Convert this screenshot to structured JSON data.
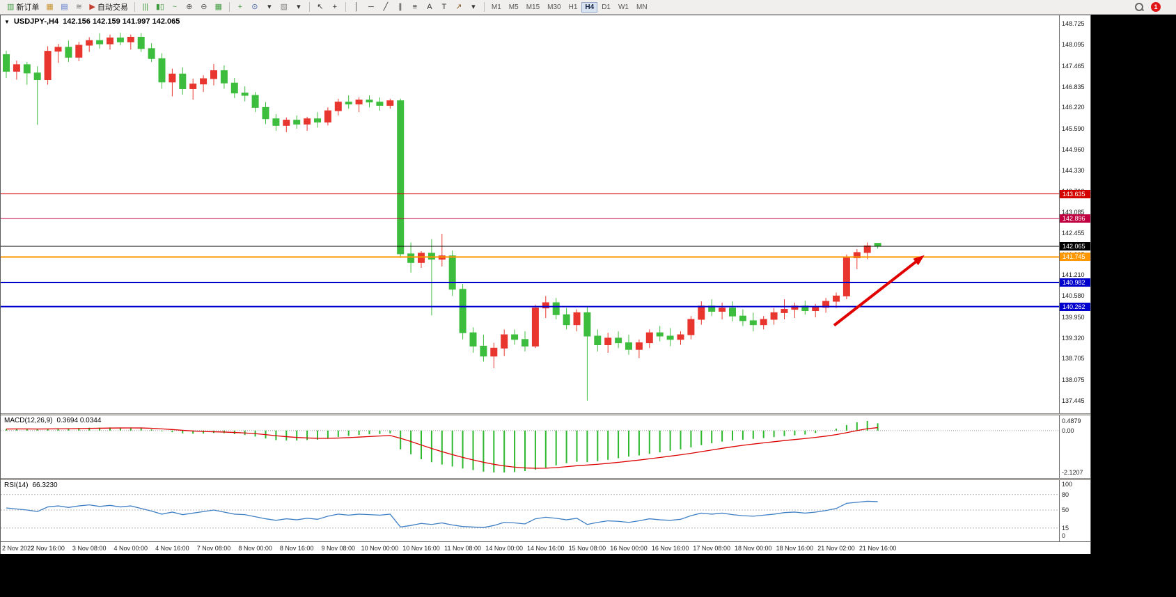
{
  "toolbar": {
    "notification_badge": "1",
    "items": [
      {
        "kind": "button",
        "name": "new-order-button",
        "glyph": "▥",
        "color": "#3f9d3f",
        "label": "新订单"
      },
      {
        "kind": "icon",
        "name": "charts-window-icon",
        "glyph": "▦",
        "color": "#c8922f"
      },
      {
        "kind": "icon",
        "name": "market-watch-icon",
        "glyph": "▤",
        "color": "#5b79c9"
      },
      {
        "kind": "icon",
        "name": "signals-icon",
        "glyph": "≋",
        "color": "#777777"
      },
      {
        "kind": "button",
        "name": "auto-trading-button",
        "glyph": "▶",
        "color": "#c43c2e",
        "label": "自动交易"
      },
      {
        "kind": "sep"
      },
      {
        "kind": "icon",
        "name": "bar-chart-icon",
        "glyph": "|||",
        "color": "#3f9d3f"
      },
      {
        "kind": "icon",
        "name": "candlestick-chart-icon",
        "glyph": "▮▯",
        "color": "#3f9d3f"
      },
      {
        "kind": "icon",
        "name": "line-chart-icon",
        "glyph": "~",
        "color": "#3f9d3f"
      },
      {
        "kind": "icon",
        "name": "zoom-in-icon",
        "glyph": "⊕",
        "color": "#555555"
      },
      {
        "kind": "icon",
        "name": "zoom-out-icon",
        "glyph": "⊖",
        "color": "#555555"
      },
      {
        "kind": "icon",
        "name": "tile-windows-icon",
        "glyph": "▦",
        "color": "#3f9d3f"
      },
      {
        "kind": "sep"
      },
      {
        "kind": "icon",
        "name": "new-chart-icon",
        "glyph": "+",
        "color": "#3f9d3f"
      },
      {
        "kind": "icon",
        "name": "clock-icon",
        "glyph": "⊙",
        "color": "#4466aa"
      },
      {
        "kind": "icon",
        "name": "chart-options-dropdown-icon",
        "glyph": "▾",
        "color": "#333333"
      },
      {
        "kind": "icon",
        "name": "templates-icon",
        "glyph": "▨",
        "color": "#888888"
      },
      {
        "kind": "icon",
        "name": "templates-dropdown-icon",
        "glyph": "▾",
        "color": "#333333"
      },
      {
        "kind": "sep"
      },
      {
        "kind": "icon",
        "name": "cursor-icon",
        "glyph": "↖",
        "color": "#333333"
      },
      {
        "kind": "icon",
        "name": "crosshair-icon",
        "glyph": "+",
        "color": "#333333"
      },
      {
        "kind": "sep"
      },
      {
        "kind": "icon",
        "name": "vertical-line-icon",
        "glyph": "│",
        "color": "#333333"
      },
      {
        "kind": "icon",
        "name": "horizontal-line-icon",
        "glyph": "─",
        "color": "#333333"
      },
      {
        "kind": "icon",
        "name": "trendline-icon",
        "glyph": "╱",
        "color": "#333333"
      },
      {
        "kind": "icon",
        "name": "equidistant-channel-icon",
        "glyph": "∥",
        "color": "#333333"
      },
      {
        "kind": "icon",
        "name": "fibonacci-icon",
        "glyph": "≡",
        "color": "#333333"
      },
      {
        "kind": "icon",
        "name": "text-icon",
        "glyph": "A",
        "color": "#333333"
      },
      {
        "kind": "icon",
        "name": "text-label-icon",
        "glyph": "T",
        "color": "#333333"
      },
      {
        "kind": "icon",
        "name": "arrows-tool-icon",
        "glyph": "↗",
        "color": "#8a5c2e"
      },
      {
        "kind": "icon",
        "name": "arrows-dropdown-icon",
        "glyph": "▾",
        "color": "#333333"
      },
      {
        "kind": "sep"
      },
      {
        "kind": "tf",
        "label": "M1"
      },
      {
        "kind": "tf",
        "label": "M5"
      },
      {
        "kind": "tf",
        "label": "M15"
      },
      {
        "kind": "tf",
        "label": "M30"
      },
      {
        "kind": "tf",
        "label": "H1"
      },
      {
        "kind": "tf",
        "label": "H4",
        "active": true
      },
      {
        "kind": "tf",
        "label": "D1"
      },
      {
        "kind": "tf",
        "label": "W1"
      },
      {
        "kind": "tf",
        "label": "MN"
      }
    ]
  },
  "header": {
    "symbol_period": "USDJPY-,H4",
    "ohlc": "142.156 142.159 141.997 142.065"
  },
  "chart_data": {
    "type": "candlestick",
    "symbol": "USDJPY-",
    "timeframe": "H4",
    "grid": false,
    "up_color": "#e8352e",
    "down_color": "#3dbd3d",
    "price_range": [
      137.07,
      148.975
    ],
    "ohlc_display": {
      "open": "142.156",
      "high": "142.159",
      "low": "141.997",
      "close": "142.065"
    },
    "price_axis_labels": [
      "148.725",
      "148.095",
      "147.465",
      "146.835",
      "146.220",
      "145.590",
      "144.960",
      "144.330",
      "143.710",
      "143.085",
      "142.455",
      "141.825",
      "141.210",
      "140.580",
      "139.950",
      "139.320",
      "138.705",
      "138.075",
      "137.445"
    ],
    "time_axis_labels": [
      "2 Nov 2022",
      "2 Nov 16:00",
      "3 Nov 08:00",
      "4 Nov 00:00",
      "4 Nov 16:00",
      "7 Nov 08:00",
      "8 Nov 00:00",
      "8 Nov 16:00",
      "9 Nov 08:00",
      "10 Nov 00:00",
      "10 Nov 16:00",
      "11 Nov 08:00",
      "14 Nov 00:00",
      "14 Nov 16:00",
      "15 Nov 08:00",
      "16 Nov 00:00",
      "16 Nov 16:00",
      "17 Nov 08:00",
      "18 Nov 00:00",
      "18 Nov 16:00",
      "21 Nov 02:00",
      "21 Nov 16:00"
    ],
    "hlines": [
      {
        "name": "resistance-1",
        "value": 143.635,
        "label": "143.635",
        "color": "#d40000",
        "width": 1
      },
      {
        "name": "resistance-2",
        "value": 142.896,
        "label": "142.896",
        "color": "#c00040",
        "width": 1
      },
      {
        "name": "bid-price-line",
        "value": 142.065,
        "label": "142.065",
        "color": "#000000",
        "width": 1
      },
      {
        "name": "pivot-line",
        "value": 141.745,
        "label": "141.745",
        "color": "#ff9800",
        "width": 2
      },
      {
        "name": "support-1",
        "value": 140.982,
        "label": "140.982",
        "color": "#0000cc",
        "width": 2
      },
      {
        "name": "support-2",
        "value": 140.262,
        "label": "140.262",
        "color": "#0000cc",
        "width": 2
      }
    ],
    "annotations": [
      {
        "type": "arrow",
        "name": "trend-arrow",
        "color": "#e00000",
        "width": 4,
        "from": {
          "bar": 79.8,
          "price": 139.7
        },
        "to": {
          "bar": 88.5,
          "price": 141.8
        }
      }
    ],
    "candles": [
      [
        147.8,
        147.92,
        147.1,
        147.3
      ],
      [
        147.3,
        147.62,
        147.05,
        147.5
      ],
      [
        147.5,
        147.58,
        146.9,
        147.25
      ],
      [
        147.25,
        147.45,
        145.7,
        147.05
      ],
      [
        147.05,
        148.05,
        146.9,
        147.9
      ],
      [
        147.9,
        148.12,
        147.55,
        148.02
      ],
      [
        148.02,
        148.22,
        147.58,
        147.72
      ],
      [
        147.72,
        148.18,
        147.6,
        148.08
      ],
      [
        148.08,
        148.32,
        147.88,
        148.22
      ],
      [
        148.22,
        148.44,
        147.98,
        148.12
      ],
      [
        148.12,
        148.4,
        147.95,
        148.3
      ],
      [
        148.3,
        148.45,
        148.08,
        148.18
      ],
      [
        148.18,
        148.4,
        147.95,
        148.32
      ],
      [
        148.32,
        148.44,
        147.88,
        147.98
      ],
      [
        147.98,
        148.14,
        147.58,
        147.68
      ],
      [
        147.68,
        147.84,
        146.78,
        146.98
      ],
      [
        146.98,
        147.38,
        146.55,
        147.22
      ],
      [
        147.22,
        147.42,
        146.6,
        146.78
      ],
      [
        146.78,
        147.08,
        146.45,
        146.92
      ],
      [
        146.92,
        147.18,
        146.68,
        147.08
      ],
      [
        147.08,
        147.52,
        146.88,
        147.32
      ],
      [
        147.32,
        147.48,
        146.78,
        146.95
      ],
      [
        146.95,
        147.1,
        146.5,
        146.65
      ],
      [
        146.65,
        146.85,
        146.4,
        146.58
      ],
      [
        146.58,
        146.68,
        146.08,
        146.22
      ],
      [
        146.22,
        146.38,
        145.72,
        145.88
      ],
      [
        145.88,
        146.02,
        145.52,
        145.68
      ],
      [
        145.68,
        145.92,
        145.48,
        145.84
      ],
      [
        145.84,
        145.98,
        145.58,
        145.72
      ],
      [
        145.72,
        145.94,
        145.52,
        145.88
      ],
      [
        145.88,
        146.08,
        145.62,
        145.78
      ],
      [
        145.78,
        146.22,
        145.68,
        146.12
      ],
      [
        146.12,
        146.48,
        145.98,
        146.38
      ],
      [
        146.38,
        146.58,
        146.18,
        146.32
      ],
      [
        146.32,
        146.52,
        146.08,
        146.44
      ],
      [
        146.44,
        146.58,
        146.22,
        146.38
      ],
      [
        146.38,
        146.52,
        146.12,
        146.28
      ],
      [
        146.28,
        146.48,
        146.18,
        146.42
      ],
      [
        146.42,
        146.48,
        141.72,
        141.84
      ],
      [
        141.84,
        142.18,
        141.28,
        141.58
      ],
      [
        141.58,
        141.92,
        141.42,
        141.86
      ],
      [
        141.86,
        142.28,
        140.0,
        141.68
      ],
      [
        141.68,
        142.44,
        141.46,
        141.78
      ],
      [
        141.78,
        141.94,
        140.58,
        140.78
      ],
      [
        140.78,
        140.94,
        139.28,
        139.48
      ],
      [
        139.48,
        139.64,
        138.88,
        139.08
      ],
      [
        139.08,
        139.42,
        138.62,
        138.78
      ],
      [
        138.78,
        139.18,
        138.42,
        139.02
      ],
      [
        139.02,
        139.58,
        138.78,
        139.42
      ],
      [
        139.42,
        139.58,
        139.12,
        139.28
      ],
      [
        139.28,
        139.52,
        138.92,
        139.08
      ],
      [
        139.08,
        140.32,
        139.02,
        140.22
      ],
      [
        140.22,
        140.58,
        139.92,
        140.38
      ],
      [
        140.38,
        140.52,
        139.88,
        140.02
      ],
      [
        140.02,
        140.22,
        139.58,
        139.72
      ],
      [
        139.72,
        140.18,
        139.52,
        140.08
      ],
      [
        140.08,
        140.28,
        137.45,
        139.38
      ],
      [
        139.38,
        139.58,
        138.92,
        139.12
      ],
      [
        139.12,
        139.48,
        138.88,
        139.32
      ],
      [
        139.32,
        139.52,
        139.02,
        139.18
      ],
      [
        139.18,
        139.42,
        138.82,
        138.98
      ],
      [
        138.98,
        139.28,
        138.72,
        139.18
      ],
      [
        139.18,
        139.58,
        139.02,
        139.48
      ],
      [
        139.48,
        139.68,
        139.22,
        139.38
      ],
      [
        139.38,
        139.62,
        139.08,
        139.28
      ],
      [
        139.28,
        139.52,
        139.12,
        139.42
      ],
      [
        139.42,
        139.98,
        139.28,
        139.88
      ],
      [
        139.88,
        140.42,
        139.72,
        140.28
      ],
      [
        140.28,
        140.48,
        139.98,
        140.12
      ],
      [
        140.12,
        140.38,
        139.88,
        140.22
      ],
      [
        140.22,
        140.42,
        139.82,
        139.98
      ],
      [
        139.98,
        140.18,
        139.68,
        139.84
      ],
      [
        139.84,
        140.08,
        139.52,
        139.72
      ],
      [
        139.72,
        139.98,
        139.58,
        139.88
      ],
      [
        139.88,
        140.22,
        139.72,
        140.08
      ],
      [
        140.08,
        140.48,
        139.88,
        140.18
      ],
      [
        140.18,
        140.38,
        139.92,
        140.28
      ],
      [
        140.28,
        140.44,
        140.02,
        140.14
      ],
      [
        140.14,
        140.34,
        139.94,
        140.24
      ],
      [
        140.24,
        140.52,
        140.08,
        140.42
      ],
      [
        140.42,
        140.68,
        140.22,
        140.58
      ],
      [
        140.58,
        141.82,
        140.48,
        141.72
      ],
      [
        141.72,
        141.98,
        141.38,
        141.88
      ],
      [
        141.88,
        142.18,
        141.68,
        142.08
      ],
      [
        142.156,
        142.159,
        141.997,
        142.065
      ]
    ],
    "indicators": [
      {
        "name": "MACD",
        "label": "MACD(12,26,9)",
        "values_text": "0.3694 0.0344",
        "main_value": 0.3694,
        "signal_value": 0.0344,
        "histogram_color": "#2db82d",
        "signal_color": "#dd0000",
        "scale_labels": [
          "0.4879",
          "0.00",
          "-2.1207"
        ],
        "scale_max": 0.4879,
        "scale_min": -2.1207,
        "histogram": [
          0.08,
          0.1,
          0.09,
          0.06,
          0.1,
          0.12,
          0.12,
          0.13,
          0.15,
          0.15,
          0.16,
          0.15,
          0.15,
          0.12,
          0.06,
          -0.04,
          -0.08,
          -0.14,
          -0.16,
          -0.15,
          -0.12,
          -0.13,
          -0.18,
          -0.22,
          -0.3,
          -0.4,
          -0.48,
          -0.5,
          -0.5,
          -0.48,
          -0.46,
          -0.4,
          -0.32,
          -0.27,
          -0.22,
          -0.19,
          -0.17,
          -0.14,
          -0.95,
          -1.2,
          -1.45,
          -1.6,
          -1.72,
          -1.82,
          -1.92,
          -2.0,
          -2.08,
          -2.12,
          -2.12,
          -2.1,
          -2.05,
          -1.98,
          -1.88,
          -1.76,
          -1.65,
          -1.58,
          -1.6,
          -1.55,
          -1.48,
          -1.4,
          -1.32,
          -1.26,
          -1.18,
          -1.1,
          -1.02,
          -0.95,
          -0.85,
          -0.74,
          -0.64,
          -0.56,
          -0.5,
          -0.46,
          -0.42,
          -0.38,
          -0.33,
          -0.28,
          -0.24,
          -0.2,
          -0.12,
          -0.02,
          0.1,
          0.28,
          0.42,
          0.4879,
          0.3694
        ]
      },
      {
        "name": "RSI",
        "label": "RSI(14)",
        "values_text": "66.3230",
        "current_value": 66.323,
        "line_color": "#3f7fc4",
        "levels": [
          80,
          50,
          15
        ],
        "scale_labels": [
          "100",
          "80",
          "50",
          "15",
          "0"
        ],
        "scale_max": 100,
        "scale_min": 0,
        "values": [
          54,
          52,
          50,
          47,
          56,
          58,
          55,
          58,
          60,
          57,
          59,
          56,
          58,
          53,
          48,
          42,
          46,
          41,
          44,
          47,
          50,
          46,
          42,
          41,
          37,
          33,
          30,
          33,
          31,
          34,
          32,
          38,
          42,
          40,
          42,
          41,
          40,
          42,
          17,
          20,
          24,
          22,
          25,
          21,
          18,
          17,
          16,
          20,
          26,
          25,
          23,
          33,
          36,
          34,
          31,
          34,
          22,
          26,
          29,
          28,
          26,
          29,
          33,
          31,
          30,
          32,
          39,
          44,
          42,
          44,
          41,
          39,
          38,
          40,
          42,
          45,
          46,
          44,
          46,
          49,
          53,
          63,
          65,
          67,
          66.32
        ]
      }
    ]
  }
}
